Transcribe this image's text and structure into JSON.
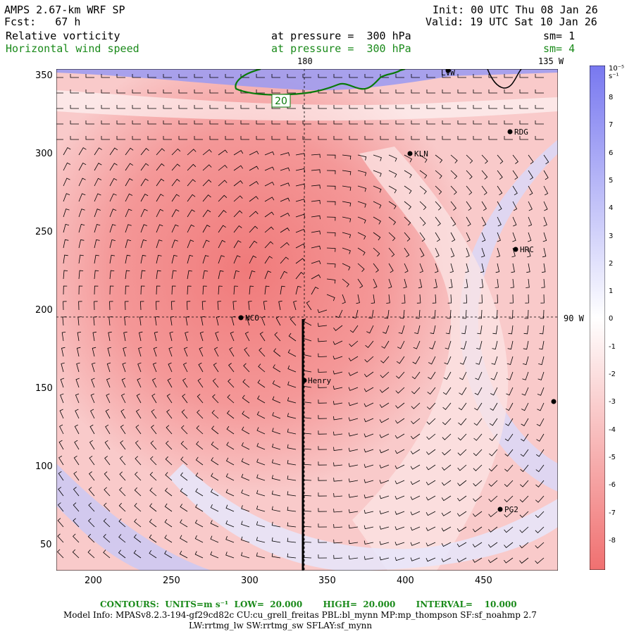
{
  "header": {
    "model": "AMPS 2.67-km WRF SP",
    "forecast": "Fcst:   67 h",
    "init": "Init: 00 UTC Thu 08 Jan 26",
    "valid": "Valid: 19 UTC Sat 10 Jan 26",
    "field1_name": "Relative vorticity",
    "field1_level": "at pressure =  300 hPa",
    "field1_sm": "sm= 1",
    "field2_name": "Horizontal wind speed",
    "field2_level": "at pressure =  300 hPa",
    "field2_sm": "sm= 4"
  },
  "map": {
    "lon_label_top": "180",
    "lon_label_topright": "135 W",
    "lon_label_right": "90 W",
    "contour_label": "20",
    "x_ticks": [
      "200",
      "250",
      "300",
      "350",
      "400",
      "450"
    ],
    "y_ticks": [
      "350",
      "300",
      "250",
      "200",
      "150",
      "100",
      "50"
    ],
    "stations": [
      {
        "name": "LVW"
      },
      {
        "name": "RDG"
      },
      {
        "name": "KLN"
      },
      {
        "name": "HRC"
      },
      {
        "name": "NCO"
      },
      {
        "name": "Henry"
      },
      {
        "name": "PG2"
      },
      {
        "name": ""
      }
    ]
  },
  "colorbar": {
    "unit": "10⁻⁵ s⁻¹",
    "labels": [
      "8",
      "7",
      "6",
      "5",
      "4",
      "3",
      "2",
      "1",
      "0",
      "-1",
      "-2",
      "-3",
      "-4",
      "-5",
      "-6",
      "-7",
      "-8"
    ],
    "pos_color": "#7878f0",
    "neg_color": "#f07070"
  },
  "footer": {
    "contours": "CONTOURS:  UNITS=m s⁻¹  LOW=  20.000       HIGH=  20.000       INTERVAL=    10.000",
    "model_info": "Model Info: MPASv8.2.3-194-gf29cd82c CU:cu_grell_freitas PBL:bl_mynn MP:mp_thompson SF:sf_noahmp 2.7",
    "physics": "LW:rrtmg_lw SW:rrtmg_sw SFLAY:sf_mynn"
  }
}
